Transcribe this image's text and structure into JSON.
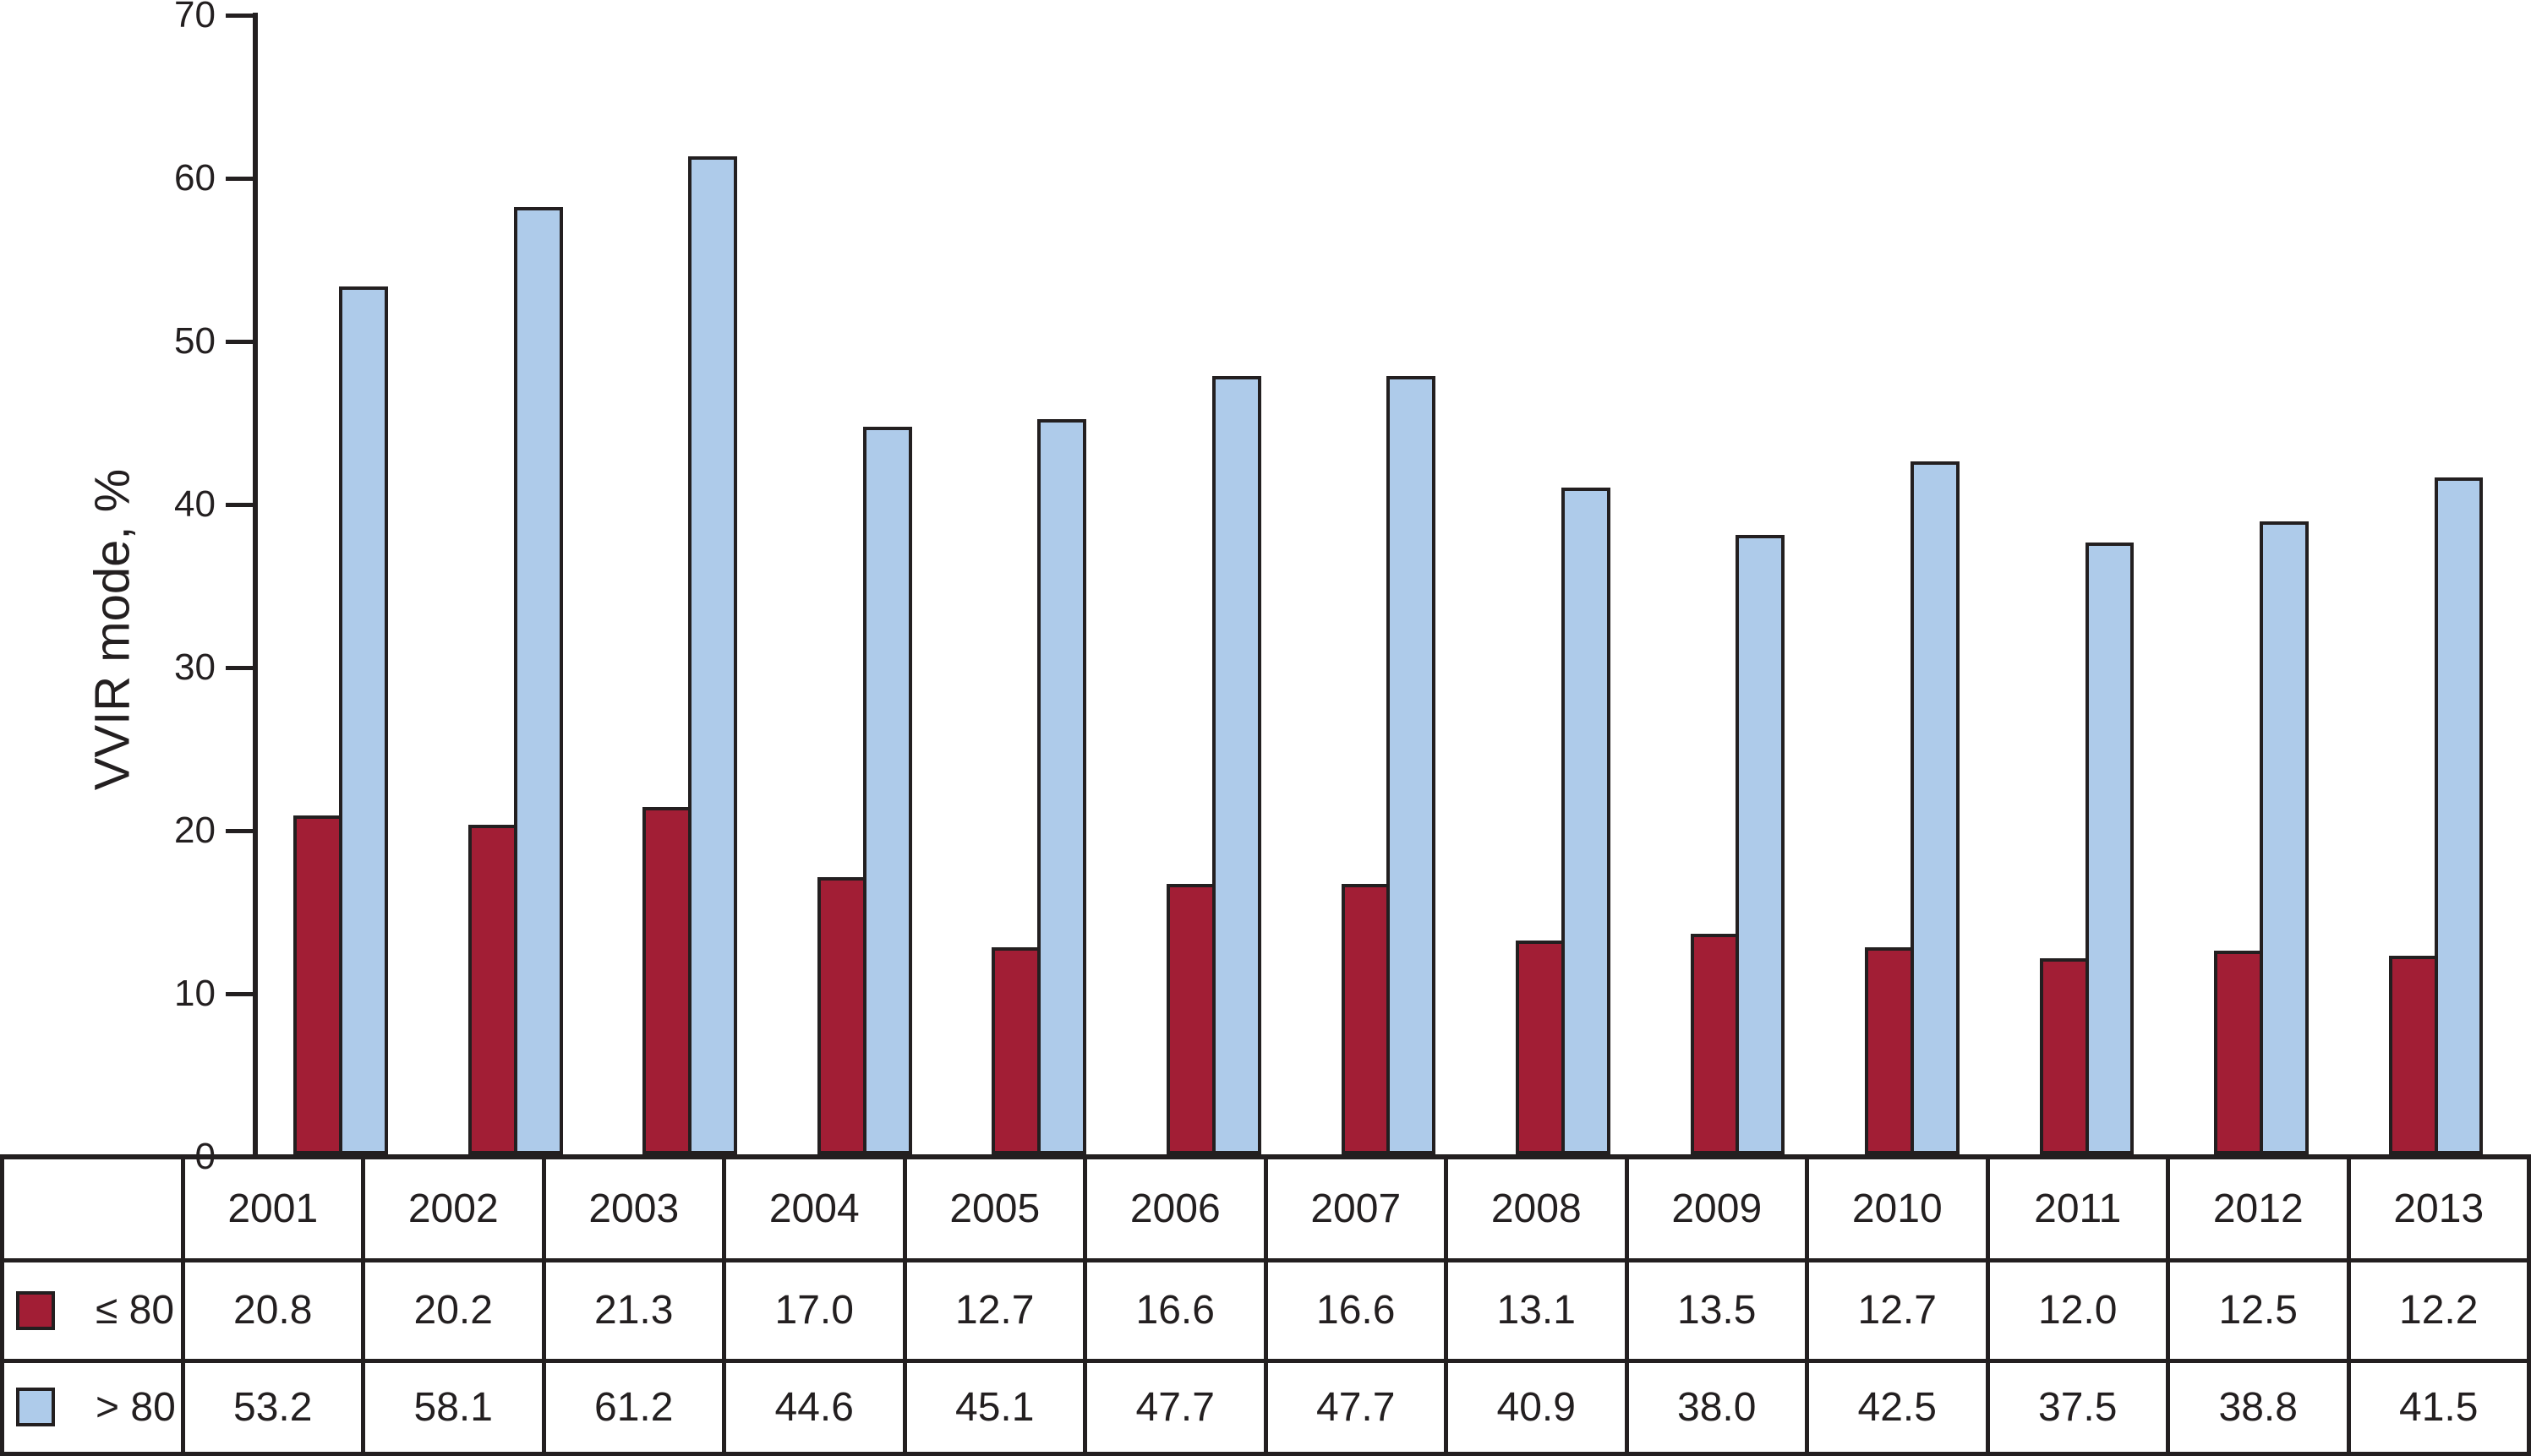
{
  "chart_data": {
    "type": "bar",
    "title": "",
    "xlabel": "",
    "ylabel": "VVIR mode, %",
    "ylim": [
      0,
      70
    ],
    "yticks": [
      0,
      10,
      20,
      30,
      40,
      50,
      60,
      70
    ],
    "grid": false,
    "legend_position": "table-left-bottom",
    "categories": [
      "2001",
      "2002",
      "2003",
      "2004",
      "2005",
      "2006",
      "2007",
      "2008",
      "2009",
      "2010",
      "2011",
      "2012",
      "2013"
    ],
    "series": [
      {
        "name": "≤ 80",
        "key": "le80",
        "color": "#A21E35",
        "values": [
          20.8,
          20.2,
          21.3,
          17.0,
          12.7,
          16.6,
          16.6,
          13.1,
          13.5,
          12.7,
          12.0,
          12.5,
          12.2
        ]
      },
      {
        "name": "> 80",
        "key": "gt80",
        "color": "#AECBEA",
        "values": [
          53.2,
          58.1,
          61.2,
          44.6,
          45.1,
          47.7,
          47.7,
          40.9,
          38.0,
          42.5,
          37.5,
          38.8,
          41.5
        ]
      }
    ]
  },
  "colors": {
    "series1_fill": "#A21E35",
    "series2_fill": "#AECBEA",
    "line": "#231F20",
    "background": "#FFFFFF"
  }
}
